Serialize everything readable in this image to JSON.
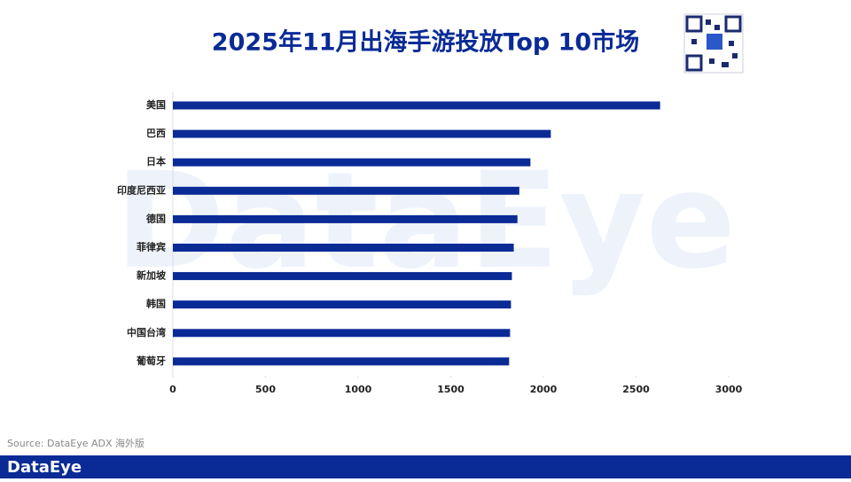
{
  "chart_data": {
    "type": "hbar",
    "title": "2025年11月出海手游投放Top 10市场",
    "categories": [
      "美国",
      "巴西",
      "日本",
      "印度尼西亚",
      "德国",
      "菲律宾",
      "新加坡",
      "韩国",
      "中国台湾",
      "葡萄牙"
    ],
    "values": [
      2630,
      2040,
      1930,
      1870,
      1860,
      1840,
      1830,
      1825,
      1820,
      1815
    ],
    "color": "#0a2b96",
    "xlim": [
      0,
      3000
    ],
    "xticks": [
      0,
      500,
      1000,
      1500,
      2000,
      2500,
      3000
    ],
    "source": "Source: DataEye ADX 海外版",
    "watermark": "DataEye",
    "logo": "DataEye"
  }
}
